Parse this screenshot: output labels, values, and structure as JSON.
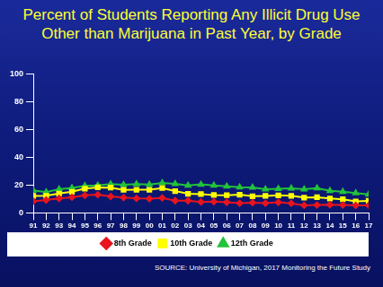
{
  "chart_data": {
    "type": "line",
    "title": "Percent of Students Reporting Any Illicit Drug Use Other than Marijuana in Past Year, by Grade",
    "source": "SOURCE: University of Michigan, 2017 Monitoring the Future Study",
    "categories": [
      "91",
      "92",
      "93",
      "94",
      "95",
      "96",
      "97",
      "98",
      "99",
      "00",
      "01",
      "02",
      "03",
      "04",
      "05",
      "06",
      "07",
      "08",
      "09",
      "10",
      "11",
      "12",
      "13",
      "14",
      "15",
      "16",
      "17"
    ],
    "series": [
      {
        "name": "8th Grade",
        "color": "#e8141e",
        "marker": "diamond",
        "values": [
          8.4,
          9.3,
          10.4,
          11.3,
          12.6,
          13.1,
          11.8,
          11.0,
          10.5,
          10.2,
          10.8,
          8.8,
          8.8,
          7.9,
          8.1,
          7.7,
          7.0,
          7.4,
          7.0,
          7.6,
          6.9,
          5.5,
          5.7,
          5.9,
          5.7,
          5.4,
          5.5
        ]
      },
      {
        "name": "10th Grade",
        "color": "#ffff00",
        "marker": "square",
        "values": [
          12.2,
          12.3,
          13.9,
          15.2,
          17.5,
          18.4,
          18.2,
          16.6,
          16.7,
          16.7,
          17.9,
          15.7,
          13.8,
          13.5,
          12.9,
          12.7,
          13.1,
          12.0,
          12.2,
          12.6,
          12.3,
          11.0,
          11.3,
          10.4,
          9.8,
          8.3,
          8.7
        ]
      },
      {
        "name": "12th Grade",
        "color": "#22c33a",
        "marker": "triangle",
        "values": [
          16.2,
          14.9,
          17.1,
          18.0,
          19.4,
          19.8,
          20.7,
          20.2,
          20.7,
          20.4,
          21.6,
          20.9,
          19.8,
          20.5,
          19.7,
          19.2,
          18.5,
          18.3,
          17.0,
          17.3,
          17.6,
          17.0,
          17.8,
          15.9,
          15.2,
          14.3,
          13.3
        ]
      }
    ],
    "ylim": [
      0,
      100
    ],
    "yticks": [
      0,
      20,
      40,
      60,
      80,
      100
    ],
    "grid": false,
    "legend": "bottom"
  }
}
